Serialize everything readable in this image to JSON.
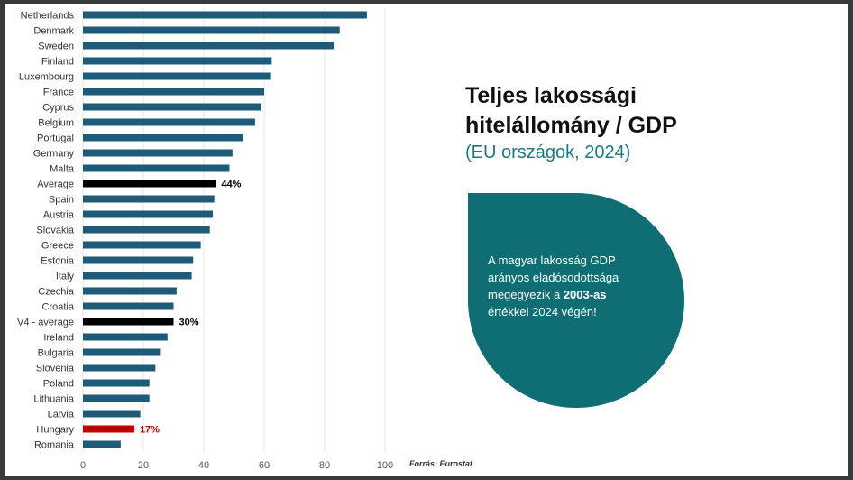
{
  "chart_data": {
    "type": "bar",
    "orientation": "horizontal",
    "title": "Teljes lakossági hitelállomány / GDP",
    "subtitle": "(EU országok, 2024)",
    "categories": [
      "Netherlands",
      "Denmark",
      "Sweden",
      "Finland",
      "Luxembourg",
      "France",
      "Cyprus",
      "Belgium",
      "Portugal",
      "Germany",
      "Malta",
      "Average",
      "Spain",
      "Austria",
      "Slovakia",
      "Greece",
      "Estonia",
      "Italy",
      "Czechia",
      "Croatia",
      "V4 - average",
      "Ireland",
      "Bulgaria",
      "Slovenia",
      "Poland",
      "Lithuania",
      "Latvia",
      "Hungary",
      "Romania"
    ],
    "values": [
      94,
      85,
      83,
      62.5,
      62,
      60,
      59,
      57,
      53,
      49.5,
      48.5,
      44,
      43.5,
      43,
      42,
      39,
      36.5,
      36,
      31,
      30,
      30,
      28,
      25.5,
      24,
      22,
      22,
      19,
      17,
      12.5
    ],
    "colors": [
      "#1e5b78",
      "#1e5b78",
      "#1e5b78",
      "#1e5b78",
      "#1e5b78",
      "#1e5b78",
      "#1e5b78",
      "#1e5b78",
      "#1e5b78",
      "#1e5b78",
      "#1e5b78",
      "#000000",
      "#1e5b78",
      "#1e5b78",
      "#1e5b78",
      "#1e5b78",
      "#1e5b78",
      "#1e5b78",
      "#1e5b78",
      "#1e5b78",
      "#000000",
      "#1e5b78",
      "#1e5b78",
      "#1e5b78",
      "#1e5b78",
      "#1e5b78",
      "#1e5b78",
      "#c00000",
      "#1e5b78"
    ],
    "data_labels": [
      {
        "category": "Average",
        "text": "44%",
        "color": "#000000"
      },
      {
        "category": "V4 - average",
        "text": "30%",
        "color": "#000000"
      },
      {
        "category": "Hungary",
        "text": "17%",
        "color": "#c00000"
      }
    ],
    "xlim": [
      0,
      100
    ],
    "xticks": [
      0,
      20,
      40,
      60,
      80,
      100
    ],
    "grid": true
  },
  "callout": {
    "line1": "A magyar lakosság GDP",
    "line2": "arányos eladósodottsága",
    "line3_prefix": "megegyezik a ",
    "line3_bold": "2003-as",
    "line4": "értékkel 2024 végén!"
  },
  "source": "Forrás: Eurostat",
  "colors": {
    "bar": "#1e5b78",
    "highlight_average": "#000000",
    "highlight_hungary": "#c00000",
    "accent": "#0e6e73"
  }
}
